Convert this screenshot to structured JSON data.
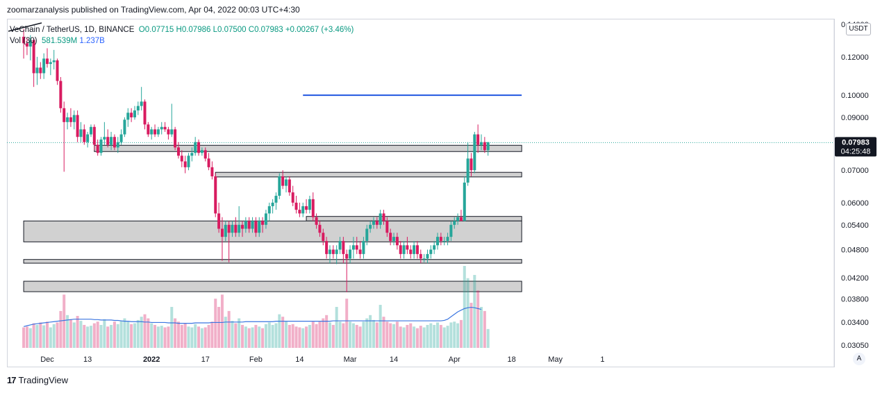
{
  "publisher_line": "zoomarzanalysis published on TradingView.com, Apr 04, 2022 00:03 UTC+4:30",
  "legend": {
    "symbol": "VeChain / TetherUS, 1D, BINANCE",
    "open": "O0.07715",
    "high": "H0.07986",
    "low": "L0.07500",
    "close": "C0.07983",
    "change": "+0.00267 (+3.46%)",
    "volume_label": "Vol (30)",
    "volume_value": "581.539M",
    "volume_ma": "1.237B"
  },
  "currency": "USDT",
  "auto_label": "A",
  "footer_brand": "TradingView",
  "price_tag": {
    "price": "0.07983",
    "countdown": "04:25:48"
  },
  "colors": {
    "up": "#26a69a",
    "down": "#d81b60",
    "line": "#1f55e0",
    "zone": "#d1d1d1",
    "vol_ma": "#3a75e0"
  },
  "chart_data": {
    "type": "candlestick",
    "y_scale": "log",
    "ylim": [
      0.0295,
      0.1438
    ],
    "y_ticks": [
      "0.14000",
      "0.12000",
      "0.10000",
      "0.09000",
      "0.08000",
      "0.07000",
      "0.06000",
      "0.05400",
      "0.04800",
      "0.04200",
      "0.03800",
      "0.03400",
      "0.03050"
    ],
    "y_tick_values": [
      0.14,
      0.12,
      0.1,
      0.09,
      0.08,
      0.07,
      0.06,
      0.054,
      0.048,
      0.042,
      0.038,
      0.034,
      0.0305
    ],
    "x_ticks": [
      {
        "label": "Dec",
        "day": 0
      },
      {
        "label": "13",
        "day": 12
      },
      {
        "label": "2022",
        "day": 31
      },
      {
        "label": "17",
        "day": 47
      },
      {
        "label": "Feb",
        "day": 62
      },
      {
        "label": "14",
        "day": 75
      },
      {
        "label": "Mar",
        "day": 90
      },
      {
        "label": "14",
        "day": 103
      },
      {
        "label": "Apr",
        "day": 121
      },
      {
        "label": "18",
        "day": 138
      },
      {
        "label": "May",
        "day": 151
      },
      {
        "label": "1",
        "day": 165
      }
    ],
    "first_day_offset": -7,
    "resistance_line": {
      "price": 0.1,
      "from_day": 76,
      "to_day": 141
    },
    "zones": [
      {
        "low": 0.0765,
        "high": 0.0788,
        "from_day": 14
      },
      {
        "low": 0.0678,
        "high": 0.0693,
        "from_day": 50
      },
      {
        "low": 0.055,
        "high": 0.0562,
        "from_day": 77
      },
      {
        "low": 0.0498,
        "high": 0.055,
        "from_day": -7
      },
      {
        "low": 0.045,
        "high": 0.0458,
        "from_day": -7
      },
      {
        "low": 0.0393,
        "high": 0.0413,
        "from_day": -7
      }
    ],
    "zones_to_day": 141,
    "volume_max": 2000,
    "candles": [
      [
        0.132,
        0.137,
        0.119,
        0.128,
        500
      ],
      [
        0.128,
        0.131,
        0.121,
        0.126,
        520
      ],
      [
        0.126,
        0.133,
        0.118,
        0.13,
        480
      ],
      [
        0.13,
        0.131,
        0.104,
        0.111,
        600
      ],
      [
        0.111,
        0.12,
        0.105,
        0.114,
        560
      ],
      [
        0.114,
        0.117,
        0.108,
        0.111,
        620
      ],
      [
        0.111,
        0.122,
        0.108,
        0.119,
        550
      ],
      [
        0.119,
        0.125,
        0.114,
        0.116,
        640
      ],
      [
        0.116,
        0.119,
        0.11,
        0.117,
        500
      ],
      [
        0.117,
        0.124,
        0.113,
        0.118,
        580
      ],
      [
        0.118,
        0.119,
        0.105,
        0.107,
        620
      ],
      [
        0.107,
        0.109,
        0.092,
        0.094,
        900
      ],
      [
        0.094,
        0.097,
        0.0695,
        0.088,
        1300
      ],
      [
        0.088,
        0.092,
        0.085,
        0.09,
        800
      ],
      [
        0.09,
        0.094,
        0.086,
        0.088,
        700
      ],
      [
        0.088,
        0.093,
        0.085,
        0.091,
        620
      ],
      [
        0.091,
        0.093,
        0.08,
        0.082,
        780
      ],
      [
        0.082,
        0.088,
        0.08,
        0.085,
        660
      ],
      [
        0.085,
        0.087,
        0.079,
        0.08,
        560
      ],
      [
        0.08,
        0.084,
        0.078,
        0.083,
        520
      ],
      [
        0.083,
        0.087,
        0.082,
        0.086,
        540
      ],
      [
        0.086,
        0.087,
        0.077,
        0.079,
        600
      ],
      [
        0.079,
        0.081,
        0.075,
        0.076,
        640
      ],
      [
        0.076,
        0.082,
        0.075,
        0.081,
        560
      ],
      [
        0.081,
        0.088,
        0.079,
        0.082,
        700
      ],
      [
        0.082,
        0.085,
        0.078,
        0.079,
        520
      ],
      [
        0.079,
        0.084,
        0.077,
        0.082,
        560
      ],
      [
        0.082,
        0.083,
        0.077,
        0.078,
        640
      ],
      [
        0.078,
        0.082,
        0.076,
        0.08,
        580
      ],
      [
        0.08,
        0.085,
        0.079,
        0.083,
        660
      ],
      [
        0.083,
        0.09,
        0.082,
        0.089,
        720
      ],
      [
        0.089,
        0.094,
        0.086,
        0.092,
        640
      ],
      [
        0.092,
        0.094,
        0.088,
        0.09,
        580
      ],
      [
        0.09,
        0.095,
        0.089,
        0.093,
        600
      ],
      [
        0.093,
        0.097,
        0.091,
        0.095,
        680
      ],
      [
        0.095,
        0.104,
        0.093,
        0.097,
        760
      ],
      [
        0.097,
        0.098,
        0.085,
        0.087,
        820
      ],
      [
        0.087,
        0.088,
        0.082,
        0.083,
        720
      ],
      [
        0.083,
        0.086,
        0.081,
        0.085,
        600
      ],
      [
        0.085,
        0.087,
        0.082,
        0.083,
        560
      ],
      [
        0.083,
        0.086,
        0.082,
        0.085,
        520
      ],
      [
        0.085,
        0.088,
        0.083,
        0.086,
        540
      ],
      [
        0.086,
        0.088,
        0.084,
        0.085,
        500
      ],
      [
        0.085,
        0.086,
        0.081,
        0.083,
        520
      ],
      [
        0.083,
        0.096,
        0.082,
        0.085,
        1000
      ],
      [
        0.085,
        0.086,
        0.077,
        0.078,
        720
      ],
      [
        0.078,
        0.08,
        0.074,
        0.075,
        640
      ],
      [
        0.075,
        0.077,
        0.071,
        0.073,
        560
      ],
      [
        0.073,
        0.075,
        0.069,
        0.071,
        600
      ],
      [
        0.071,
        0.076,
        0.07,
        0.075,
        520
      ],
      [
        0.075,
        0.078,
        0.073,
        0.076,
        500
      ],
      [
        0.076,
        0.082,
        0.075,
        0.08,
        580
      ],
      [
        0.08,
        0.081,
        0.075,
        0.076,
        520
      ],
      [
        0.076,
        0.078,
        0.075,
        0.077,
        480
      ],
      [
        0.077,
        0.078,
        0.073,
        0.074,
        500
      ],
      [
        0.074,
        0.076,
        0.07,
        0.071,
        560
      ],
      [
        0.071,
        0.073,
        0.067,
        0.068,
        640
      ],
      [
        0.068,
        0.069,
        0.056,
        0.057,
        1200
      ],
      [
        0.057,
        0.06,
        0.052,
        0.053,
        1000
      ],
      [
        0.053,
        0.056,
        0.0455,
        0.051,
        1300
      ],
      [
        0.051,
        0.055,
        0.05,
        0.054,
        760
      ],
      [
        0.054,
        0.055,
        0.0452,
        0.052,
        900
      ],
      [
        0.052,
        0.055,
        0.051,
        0.054,
        660
      ],
      [
        0.054,
        0.056,
        0.051,
        0.052,
        600
      ],
      [
        0.052,
        0.059,
        0.051,
        0.054,
        720
      ],
      [
        0.054,
        0.055,
        0.051,
        0.053,
        560
      ],
      [
        0.053,
        0.056,
        0.052,
        0.055,
        520
      ],
      [
        0.055,
        0.056,
        0.052,
        0.053,
        480
      ],
      [
        0.053,
        0.056,
        0.052,
        0.055,
        500
      ],
      [
        0.055,
        0.056,
        0.051,
        0.052,
        560
      ],
      [
        0.052,
        0.056,
        0.051,
        0.055,
        520
      ],
      [
        0.055,
        0.056,
        0.052,
        0.054,
        480
      ],
      [
        0.054,
        0.058,
        0.053,
        0.057,
        580
      ],
      [
        0.057,
        0.06,
        0.055,
        0.059,
        620
      ],
      [
        0.059,
        0.061,
        0.057,
        0.06,
        560
      ],
      [
        0.06,
        0.063,
        0.058,
        0.062,
        600
      ],
      [
        0.062,
        0.069,
        0.061,
        0.068,
        820
      ],
      [
        0.068,
        0.07,
        0.064,
        0.065,
        760
      ],
      [
        0.065,
        0.068,
        0.063,
        0.067,
        640
      ],
      [
        0.067,
        0.068,
        0.062,
        0.063,
        560
      ],
      [
        0.063,
        0.065,
        0.059,
        0.06,
        580
      ],
      [
        0.06,
        0.062,
        0.057,
        0.058,
        520
      ],
      [
        0.058,
        0.06,
        0.056,
        0.057,
        500
      ],
      [
        0.057,
        0.06,
        0.056,
        0.059,
        480
      ],
      [
        0.059,
        0.061,
        0.057,
        0.058,
        520
      ],
      [
        0.058,
        0.062,
        0.057,
        0.061,
        560
      ],
      [
        0.061,
        0.063,
        0.055,
        0.056,
        640
      ],
      [
        0.056,
        0.057,
        0.053,
        0.054,
        580
      ],
      [
        0.054,
        0.055,
        0.051,
        0.052,
        640
      ],
      [
        0.052,
        0.053,
        0.049,
        0.05,
        720
      ],
      [
        0.05,
        0.051,
        0.046,
        0.047,
        800
      ],
      [
        0.047,
        0.049,
        0.045,
        0.048,
        620
      ],
      [
        0.048,
        0.049,
        0.046,
        0.047,
        560
      ],
      [
        0.047,
        0.049,
        0.0448,
        0.048,
        1000
      ],
      [
        0.048,
        0.051,
        0.047,
        0.05,
        640
      ],
      [
        0.05,
        0.051,
        0.045,
        0.047,
        600
      ],
      [
        0.047,
        0.048,
        0.0392,
        0.046,
        1200
      ],
      [
        0.046,
        0.049,
        0.045,
        0.048,
        640
      ],
      [
        0.048,
        0.051,
        0.046,
        0.049,
        600
      ],
      [
        0.049,
        0.051,
        0.047,
        0.048,
        560
      ],
      [
        0.048,
        0.05,
        0.046,
        0.047,
        520
      ],
      [
        0.047,
        0.051,
        0.046,
        0.05,
        640
      ],
      [
        0.05,
        0.054,
        0.049,
        0.053,
        720
      ],
      [
        0.053,
        0.055,
        0.052,
        0.054,
        800
      ],
      [
        0.054,
        0.056,
        0.053,
        0.055,
        680
      ],
      [
        0.055,
        0.056,
        0.053,
        0.054,
        620
      ],
      [
        0.054,
        0.058,
        0.053,
        0.057,
        1050
      ],
      [
        0.057,
        0.058,
        0.054,
        0.055,
        760
      ],
      [
        0.055,
        0.056,
        0.051,
        0.052,
        640
      ],
      [
        0.052,
        0.053,
        0.049,
        0.05,
        600
      ],
      [
        0.05,
        0.052,
        0.049,
        0.051,
        580
      ],
      [
        0.051,
        0.052,
        0.048,
        0.049,
        640
      ],
      [
        0.049,
        0.05,
        0.046,
        0.047,
        520
      ],
      [
        0.047,
        0.05,
        0.046,
        0.049,
        500
      ],
      [
        0.049,
        0.051,
        0.047,
        0.048,
        560
      ],
      [
        0.048,
        0.049,
        0.046,
        0.047,
        600
      ],
      [
        0.047,
        0.05,
        0.046,
        0.049,
        520
      ],
      [
        0.049,
        0.05,
        0.046,
        0.047,
        480
      ],
      [
        0.047,
        0.048,
        0.045,
        0.046,
        540
      ],
      [
        0.046,
        0.047,
        0.0452,
        0.046,
        500
      ],
      [
        0.046,
        0.048,
        0.045,
        0.047,
        560
      ],
      [
        0.047,
        0.049,
        0.046,
        0.048,
        600
      ],
      [
        0.048,
        0.05,
        0.047,
        0.049,
        560
      ],
      [
        0.049,
        0.052,
        0.048,
        0.051,
        620
      ],
      [
        0.051,
        0.052,
        0.049,
        0.05,
        560
      ],
      [
        0.05,
        0.051,
        0.049,
        0.05,
        500
      ],
      [
        0.05,
        0.052,
        0.049,
        0.051,
        540
      ],
      [
        0.051,
        0.055,
        0.05,
        0.054,
        620
      ],
      [
        0.054,
        0.056,
        0.053,
        0.055,
        640
      ],
      [
        0.055,
        0.057,
        0.054,
        0.056,
        600
      ],
      [
        0.056,
        0.058,
        0.055,
        0.055,
        680
      ],
      [
        0.055,
        0.068,
        0.055,
        0.066,
        2000
      ],
      [
        0.066,
        0.08,
        0.065,
        0.074,
        1700
      ],
      [
        0.074,
        0.076,
        0.068,
        0.07,
        1100
      ],
      [
        0.07,
        0.084,
        0.069,
        0.083,
        1780
      ],
      [
        0.083,
        0.087,
        0.076,
        0.079,
        1400
      ],
      [
        0.079,
        0.083,
        0.077,
        0.08,
        1000
      ],
      [
        0.08,
        0.082,
        0.076,
        0.077,
        900
      ],
      [
        0.077,
        0.08,
        0.075,
        0.08,
        460
      ]
    ],
    "volume_ma": [
      520,
      540,
      560,
      580,
      590,
      600,
      610,
      620,
      630,
      640,
      650,
      660,
      670,
      680,
      690,
      700,
      700,
      700,
      700,
      700,
      700,
      690,
      690,
      680,
      680,
      680,
      680,
      670,
      670,
      660,
      650,
      650,
      640,
      640,
      640,
      640,
      630,
      630,
      620,
      620,
      620,
      620,
      620,
      610,
      610,
      610,
      600,
      600,
      600,
      600,
      600,
      610,
      610,
      610,
      610,
      610,
      620,
      620,
      620,
      620,
      630,
      630,
      630,
      630,
      630,
      630,
      640,
      640,
      640,
      640,
      640,
      640,
      640,
      640,
      640,
      650,
      650,
      650,
      650,
      650,
      650,
      650,
      650,
      650,
      650,
      650,
      650,
      650,
      650,
      650,
      650,
      650,
      660,
      660,
      660,
      660,
      660,
      660,
      660,
      660,
      660,
      660,
      660,
      660,
      660,
      660,
      660,
      660,
      660,
      660,
      660,
      660,
      660,
      660,
      660,
      660,
      660,
      660,
      660,
      660,
      660,
      660,
      660,
      660,
      660,
      670,
      700,
      760,
      820,
      880,
      920,
      960,
      980,
      990,
      980,
      960,
      940
    ]
  }
}
